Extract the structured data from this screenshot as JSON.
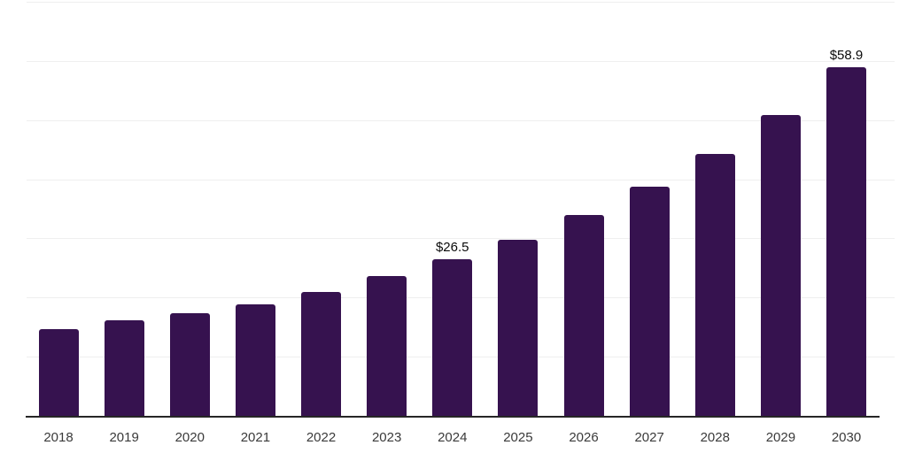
{
  "chart_data": {
    "type": "bar",
    "title": "",
    "xlabel": "",
    "ylabel": "",
    "categories": [
      "2018",
      "2019",
      "2020",
      "2021",
      "2022",
      "2023",
      "2024",
      "2025",
      "2026",
      "2027",
      "2028",
      "2029",
      "2030"
    ],
    "values": [
      14.6,
      16.1,
      17.4,
      18.8,
      20.9,
      23.6,
      26.5,
      29.8,
      33.9,
      38.7,
      44.2,
      50.9,
      58.9
    ],
    "data_labels": [
      "",
      "",
      "",
      "",
      "",
      "",
      "$26.5",
      "",
      "",
      "",
      "",
      "",
      "$58.9"
    ],
    "ylim": [
      0,
      70
    ],
    "gridline_step": 10,
    "grid": true,
    "legend": "none",
    "bar_color": "#36124F",
    "gridline_color": "#efefef",
    "axis_line_color": "#262626",
    "tick_label_color": "#3a3a3a",
    "data_label_color": "#0a0a0a",
    "background_color": "#ffffff"
  }
}
